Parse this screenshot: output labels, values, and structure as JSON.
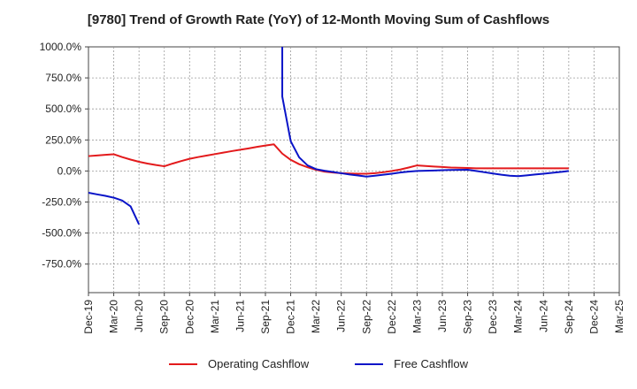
{
  "chart_data": {
    "type": "line",
    "title": "[9780]  Trend of Growth Rate (YoY) of 12-Month Moving Sum of Cashflows",
    "xlabel": "",
    "ylabel": "",
    "x_start": "2019-12",
    "x_end": "2025-03",
    "x_ticks": [
      "Dec-19",
      "Mar-20",
      "Jun-20",
      "Sep-20",
      "Dec-20",
      "Mar-21",
      "Jun-21",
      "Sep-21",
      "Dec-21",
      "Mar-22",
      "Jun-22",
      "Sep-22",
      "Dec-22",
      "Mar-23",
      "Jun-23",
      "Sep-23",
      "Dec-23",
      "Mar-24",
      "Jun-24",
      "Sep-24",
      "Dec-24",
      "Mar-25"
    ],
    "y_ticks": [
      "1000.0%",
      "750.0%",
      "500.0%",
      "250.0%",
      "0.0%",
      "-250.0%",
      "-500.0%",
      "-750.0%"
    ],
    "y_tick_values": [
      1000,
      750,
      500,
      250,
      0,
      -250,
      -500,
      -750
    ],
    "ylim": [
      -980,
      1000
    ],
    "grid": true,
    "legend_position": "bottom",
    "series": [
      {
        "name": "Operating Cashflow",
        "color": "#e31a1c",
        "points": [
          [
            "2019-12",
            120
          ],
          [
            "2020-01",
            125
          ],
          [
            "2020-02",
            130
          ],
          [
            "2020-03",
            135
          ],
          [
            "2020-04",
            112
          ],
          [
            "2020-05",
            92
          ],
          [
            "2020-06",
            74
          ],
          [
            "2020-07",
            60
          ],
          [
            "2020-08",
            48
          ],
          [
            "2020-09",
            38
          ],
          [
            "2020-10",
            60
          ],
          [
            "2020-11",
            80
          ],
          [
            "2020-12",
            98
          ],
          [
            "2021-01",
            112
          ],
          [
            "2021-02",
            124
          ],
          [
            "2021-03",
            136
          ],
          [
            "2021-04",
            148
          ],
          [
            "2021-05",
            160
          ],
          [
            "2021-06",
            171
          ],
          [
            "2021-07",
            182
          ],
          [
            "2021-08",
            194
          ],
          [
            "2021-09",
            205
          ],
          [
            "2021-10",
            215
          ],
          [
            "2021-11",
            140
          ],
          [
            "2021-12",
            90
          ],
          [
            "2022-01",
            55
          ],
          [
            "2022-02",
            30
          ],
          [
            "2022-03",
            10
          ],
          [
            "2022-04",
            -5
          ],
          [
            "2022-05",
            -12
          ],
          [
            "2022-06",
            -18
          ],
          [
            "2022-07",
            -20
          ],
          [
            "2022-08",
            -22
          ],
          [
            "2022-09",
            -22
          ],
          [
            "2022-10",
            -18
          ],
          [
            "2022-11",
            -10
          ],
          [
            "2022-12",
            0
          ],
          [
            "2023-01",
            12
          ],
          [
            "2023-02",
            28
          ],
          [
            "2023-03",
            45
          ],
          [
            "2023-04",
            40
          ],
          [
            "2023-05",
            36
          ],
          [
            "2023-06",
            32
          ],
          [
            "2023-07",
            28
          ],
          [
            "2023-08",
            26
          ],
          [
            "2023-09",
            24
          ],
          [
            "2023-10",
            22
          ],
          [
            "2023-11",
            22
          ],
          [
            "2023-12",
            22
          ],
          [
            "2024-01",
            22
          ],
          [
            "2024-02",
            22
          ],
          [
            "2024-03",
            22
          ],
          [
            "2024-04",
            22
          ],
          [
            "2024-05",
            22
          ],
          [
            "2024-06",
            22
          ],
          [
            "2024-07",
            22
          ],
          [
            "2024-08",
            22
          ],
          [
            "2024-09",
            22
          ]
        ]
      },
      {
        "name": "Free Cashflow",
        "color": "#0a14c8",
        "segments": [
          [
            [
              "2019-12",
              -175
            ],
            [
              "2020-01",
              -188
            ],
            [
              "2020-02",
              -200
            ],
            [
              "2020-03",
              -215
            ],
            [
              "2020-04",
              -238
            ],
            [
              "2020-05",
              -285
            ],
            [
              "2020-06",
              -430
            ]
          ],
          [
            [
              "2021-11",
              1000
            ],
            [
              "2021-11",
              600
            ],
            [
              "2021-12",
              240
            ],
            [
              "2022-01",
              110
            ],
            [
              "2022-02",
              45
            ],
            [
              "2022-03",
              15
            ],
            [
              "2022-04",
              2
            ],
            [
              "2022-05",
              -8
            ],
            [
              "2022-06",
              -18
            ],
            [
              "2022-07",
              -28
            ],
            [
              "2022-08",
              -36
            ],
            [
              "2022-09",
              -45
            ],
            [
              "2022-10",
              -38
            ],
            [
              "2022-11",
              -30
            ],
            [
              "2022-12",
              -22
            ],
            [
              "2023-01",
              -12
            ],
            [
              "2023-02",
              -5
            ],
            [
              "2023-03",
              0
            ],
            [
              "2023-04",
              2
            ],
            [
              "2023-05",
              4
            ],
            [
              "2023-06",
              6
            ],
            [
              "2023-07",
              8
            ],
            [
              "2023-08",
              9
            ],
            [
              "2023-09",
              10
            ],
            [
              "2023-10",
              0
            ],
            [
              "2023-11",
              -10
            ],
            [
              "2023-12",
              -20
            ],
            [
              "2024-01",
              -30
            ],
            [
              "2024-02",
              -38
            ],
            [
              "2024-03",
              -42
            ],
            [
              "2024-04",
              -35
            ],
            [
              "2024-05",
              -28
            ],
            [
              "2024-06",
              -22
            ],
            [
              "2024-07",
              -15
            ],
            [
              "2024-08",
              -8
            ],
            [
              "2024-09",
              0
            ]
          ]
        ]
      }
    ]
  }
}
